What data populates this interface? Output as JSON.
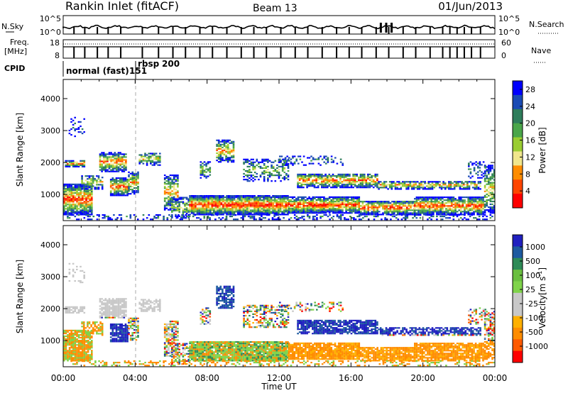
{
  "header": {
    "station": "Rankin Inlet (fitACF)",
    "beam": "Beam 13",
    "date": "01/Jun/2013"
  },
  "params_panel": {
    "nsky_label": "N.Sky",
    "nsky_ticks": [
      "10^5",
      "10^0"
    ],
    "nsearch_label": "N.Search",
    "freq_label_1": "Freq.",
    "freq_label_2": "[MHz]",
    "freq_ticks": [
      "18",
      "8"
    ],
    "nave_label": "Nave",
    "nave_ticks": [
      "60",
      "0"
    ],
    "cpid_label": "CPID",
    "cpid_modes": [
      {
        "label": "normal (fast)",
        "id": "151",
        "start_hour": 0
      },
      {
        "label": "rbsp",
        "id": "200",
        "start_hour": 4.1
      }
    ]
  },
  "chart_data": [
    {
      "type": "heatmap",
      "name": "power",
      "ylabel": "Slant Range [km]",
      "xlabel": "",
      "x_range_hours": [
        0,
        24
      ],
      "ylim": [
        180,
        4600
      ],
      "y_ticks": [
        "1000",
        "2000",
        "3000",
        "4000"
      ],
      "colorbar": {
        "label": "Power [dB]",
        "ticks": [
          "4",
          "8",
          "12",
          "16",
          "20",
          "24",
          "28"
        ],
        "colors": [
          "#0000ff",
          "#1a4bb5",
          "#2e7d5b",
          "#4aa64a",
          "#9acd32",
          "#f0e68c",
          "#ff8c00",
          "#ff4500",
          "#ff0000"
        ],
        "range": [
          0,
          30
        ]
      }
    },
    {
      "type": "heatmap",
      "name": "velocity",
      "ylabel": "Slant Range [km]",
      "xlabel": "Time UT",
      "x_ticks": [
        "00:00",
        "04:00",
        "08:00",
        "12:00",
        "16:00",
        "20:00",
        "00:00"
      ],
      "x_range_hours": [
        0,
        24
      ],
      "ylim": [
        180,
        4600
      ],
      "y_ticks": [
        "1000",
        "2000",
        "3000",
        "4000"
      ],
      "colorbar": {
        "label": "Velocity",
        "label_units": "[m s",
        "label_exp": "-1",
        "label_close": "]",
        "ticks": [
          "1000",
          "500",
          "100",
          "25",
          "-25",
          "-100",
          "-500",
          "-1000"
        ],
        "colors": [
          "#2020c0",
          "#1e5aa0",
          "#2e8b57",
          "#6abf40",
          "#7fd34a",
          "#c8c8c8",
          "#c8c8c8",
          "#ffb000",
          "#ff8c00",
          "#ff5a00",
          "#ff0000"
        ]
      }
    }
  ]
}
